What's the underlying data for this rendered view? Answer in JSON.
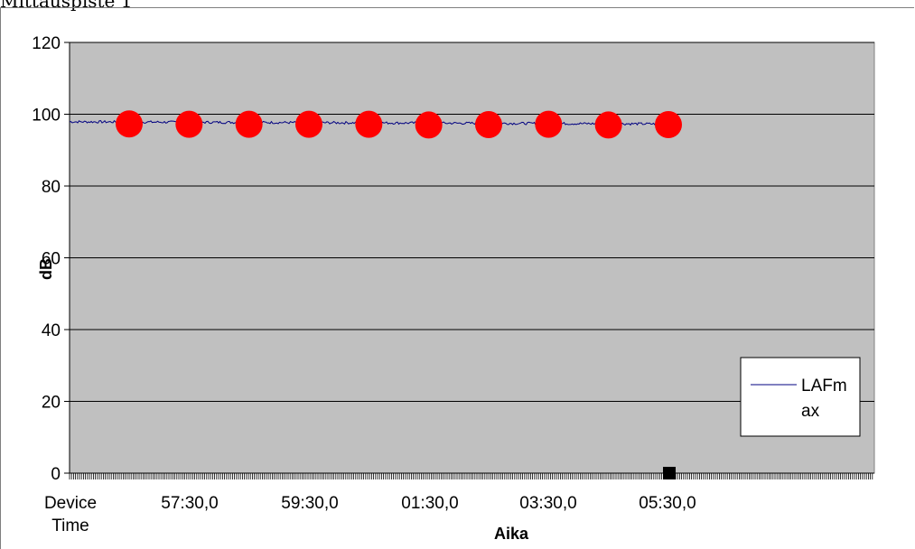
{
  "page": {
    "title": "Mittauspiste 1"
  },
  "colors": {
    "plot_background": "#c0c0c0",
    "gridline": "#000000",
    "series_line": "#000080",
    "marker_circle": "#ff0000",
    "marker_square": "#000000"
  },
  "chart_data": {
    "type": "line",
    "title": "",
    "xlabel": "Aika",
    "ylabel": "dB",
    "ylim": [
      0,
      120
    ],
    "y_ticks": [
      "0",
      "20",
      "40",
      "60",
      "80",
      "100",
      "120"
    ],
    "x_tick_labels": [
      "Device Time",
      "57:30,0",
      "59:30,0",
      "01:30,0",
      "03:30,0",
      "05:30,0"
    ],
    "grid": true,
    "legend_position": "right",
    "series": [
      {
        "name": "LAFmax",
        "legend_label": "LAFm ax",
        "legend_lines": [
          "LAFm",
          "ax"
        ],
        "level_start": 97.9,
        "level_end": 97.3,
        "level_range": [
          96.8,
          98.6
        ]
      }
    ],
    "markers": {
      "circles": [
        {
          "time": "56:30,0",
          "value": 97.3
        },
        {
          "time": "57:30,0",
          "value": 97.2
        },
        {
          "time": "58:30,0",
          "value": 97.2
        },
        {
          "time": "59:30,0",
          "value": 97.2
        },
        {
          "time": "00:30,0",
          "value": 97.2
        },
        {
          "time": "01:30,0",
          "value": 97.0
        },
        {
          "time": "02:30,0",
          "value": 97.1
        },
        {
          "time": "03:30,0",
          "value": 97.2
        },
        {
          "time": "04:30,0",
          "value": 97.0
        },
        {
          "time": "05:30,0",
          "value": 97.1
        }
      ],
      "squares": [
        {
          "time": "05:30,0",
          "value": 0
        }
      ]
    }
  }
}
